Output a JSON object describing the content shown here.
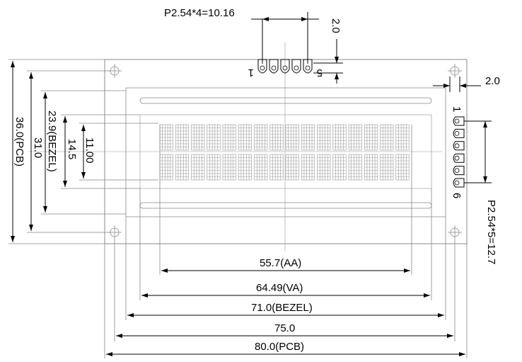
{
  "labels": {
    "pitch_top": "P2.54*4=10.16",
    "dim_2_top": "2.0",
    "pin_1_top": "1",
    "pin_5_top": "5",
    "dim_2_right": "2.0",
    "pin_1_right": "1",
    "pin_6_right": "6",
    "pitch_right": "P2.54*5=12.7",
    "h_pcb": "36.0(PCB)",
    "h_31": "31.0",
    "h_bezel": "23.9(BEZEL)",
    "h_145": "14.5",
    "h_11": "11.00",
    "w_aa": "55.7(AA)",
    "w_va": "64.49(VA)",
    "w_bezel": "71.0(BEZEL)",
    "w_75": "75.0",
    "w_pcb": "80.0(PCB)"
  },
  "display": {
    "rows": 2,
    "columns": 16
  }
}
